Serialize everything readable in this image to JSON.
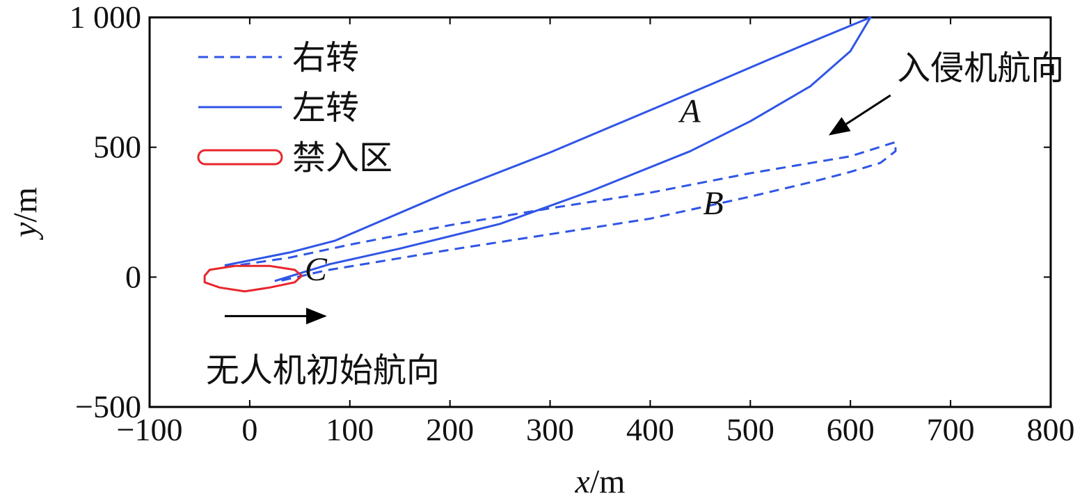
{
  "chart_data": {
    "type": "line",
    "xlabel": {
      "var": "x",
      "unit": "/m"
    },
    "ylabel": {
      "var": "y",
      "unit": "/m"
    },
    "xlim": [
      -100,
      800
    ],
    "ylim": [
      -500,
      1000
    ],
    "xticks": [
      -100,
      0,
      100,
      200,
      300,
      400,
      500,
      600,
      700,
      800
    ],
    "yticks": [
      -500,
      0,
      500,
      1000
    ],
    "xtick_labels": [
      "−100",
      "0",
      "100",
      "200",
      "300",
      "400",
      "500",
      "600",
      "700",
      "800"
    ],
    "ytick_labels": [
      "−500",
      "0",
      "500",
      "1 000"
    ],
    "grid": false,
    "legend_position": "top-left",
    "series": [
      {
        "name": "右转",
        "style": "dashed",
        "color": "#2f55e6",
        "points": [
          [
            -25,
            38
          ],
          [
            40,
            75
          ],
          [
            100,
            125
          ],
          [
            200,
            200
          ],
          [
            300,
            265
          ],
          [
            400,
            325
          ],
          [
            500,
            400
          ],
          [
            600,
            465
          ],
          [
            645,
            520
          ],
          [
            645,
            485
          ],
          [
            630,
            440
          ],
          [
            600,
            405
          ],
          [
            560,
            365
          ],
          [
            500,
            310
          ],
          [
            400,
            225
          ],
          [
            300,
            165
          ],
          [
            200,
            105
          ],
          [
            130,
            60
          ],
          [
            75,
            25
          ],
          [
            30,
            -15
          ]
        ]
      },
      {
        "name": "左转",
        "style": "solid",
        "color": "#2f55e6",
        "points": [
          [
            -25,
            45
          ],
          [
            40,
            95
          ],
          [
            85,
            140
          ],
          [
            200,
            330
          ],
          [
            300,
            480
          ],
          [
            420,
            675
          ],
          [
            520,
            840
          ],
          [
            620,
            1000
          ],
          [
            600,
            870
          ],
          [
            560,
            735
          ],
          [
            500,
            600
          ],
          [
            440,
            485
          ],
          [
            340,
            330
          ],
          [
            250,
            205
          ],
          [
            150,
            110
          ],
          [
            80,
            50
          ],
          [
            25,
            -15
          ]
        ]
      },
      {
        "name": "禁入区",
        "style": "solid",
        "color": "#e8262a",
        "points": [
          [
            -45,
            5
          ],
          [
            -40,
            28
          ],
          [
            -15,
            43
          ],
          [
            20,
            43
          ],
          [
            45,
            28
          ],
          [
            52,
            5
          ],
          [
            45,
            -20
          ],
          [
            20,
            -40
          ],
          [
            -5,
            -55
          ],
          [
            -30,
            -40
          ],
          [
            -45,
            -20
          ]
        ]
      }
    ],
    "annotations": [
      {
        "text": "A",
        "at": [
          440,
          640
        ]
      },
      {
        "text": "B",
        "at": [
          463,
          285
        ]
      },
      {
        "text": "C",
        "at": [
          66,
          30
        ]
      },
      {
        "text": "入侵机航向",
        "at": [
          730,
          805
        ]
      },
      {
        "text": "无人机初始航向",
        "at": [
          73,
          -360
        ]
      }
    ],
    "arrows": [
      {
        "from": [
          -25,
          -150
        ],
        "to": [
          75,
          -150
        ],
        "color": "#000000"
      },
      {
        "from": [
          640,
          700
        ],
        "to": [
          580,
          550
        ],
        "color": "#000000"
      }
    ]
  }
}
